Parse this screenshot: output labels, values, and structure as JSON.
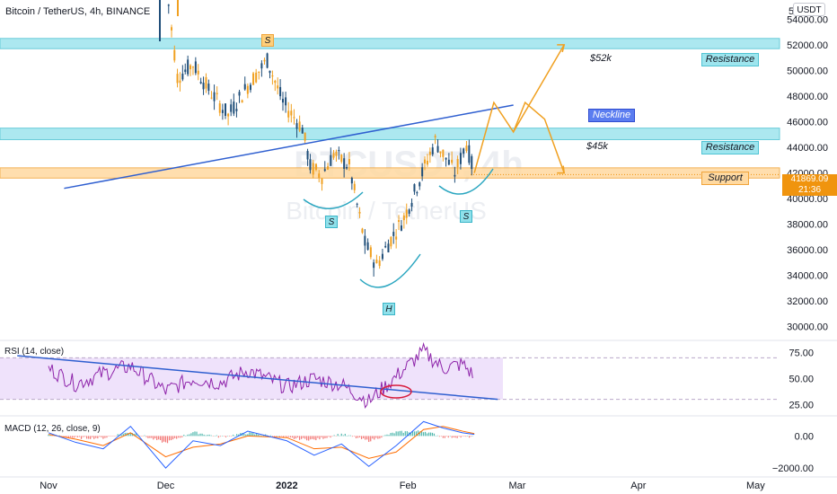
{
  "header": {
    "title": "Bitcoin / TetherUS, 4h, BINANCE",
    "currency_button": "USDT"
  },
  "price_tag": {
    "price": "41869.09",
    "countdown": "21:36"
  },
  "watermark": {
    "symbol": "BTCUSDT, 4h",
    "name": "Bitcoin / TetherUS"
  },
  "zones": {
    "resistance_label": "Resistance",
    "resistance_52k": "$52k",
    "resistance_45k": "$45k",
    "support_label": "Support",
    "neckline_label": "Neckline"
  },
  "pattern_labels": {
    "left_shoulder": "S",
    "head": "H",
    "right_shoulder": "S",
    "top_shoulder": "S"
  },
  "indicators": {
    "rsi_label": "RSI (14, close)",
    "macd_label": "MACD (12, 26, close, 9)"
  },
  "colors": {
    "resistance_zone": "#9ee5ee",
    "support_zone": "#ffd9a0",
    "neckline": "#2f5fd0",
    "projection": "#f0a020",
    "up_candle": "#1f4e79",
    "down_candle": "#f0a020",
    "rsi_line": "#8e24aa",
    "macd_line": "#2962ff",
    "signal_line": "#ff6d00"
  },
  "chart_data": [
    {
      "type": "line",
      "panel": "price",
      "title": "Bitcoin / TetherUS, 4h, BINANCE",
      "x_ticks": [
        "Nov",
        "Dec",
        "2022",
        "Feb",
        "Mar",
        "Apr",
        "May"
      ],
      "y_ticks": [
        "30000.00",
        "32000.00",
        "34000.00",
        "36000.00",
        "38000.00",
        "40000.00",
        "42000.00",
        "44000.00",
        "46000.00",
        "48000.00",
        "50000.00",
        "52000.00",
        "54000.00"
      ],
      "y_top_tick": "5",
      "ylim": [
        29000,
        55500
      ],
      "x": [
        "2021-12-01",
        "2021-12-04",
        "2021-12-08",
        "2021-12-12",
        "2021-12-17",
        "2021-12-22",
        "2021-12-27",
        "2021-12-31",
        "2022-01-05",
        "2022-01-07",
        "2022-01-10",
        "2022-01-13",
        "2022-01-17",
        "2022-01-21",
        "2022-01-24",
        "2022-01-27",
        "2022-01-31",
        "2022-02-04",
        "2022-02-08",
        "2022-02-10",
        "2022-02-13",
        "2022-02-16",
        "2022-02-18"
      ],
      "close": [
        57000,
        49500,
        50500,
        48500,
        46500,
        48800,
        50800,
        47500,
        45500,
        42500,
        41800,
        43500,
        42500,
        36500,
        34800,
        36500,
        38500,
        41500,
        44500,
        43500,
        42000,
        44300,
        41869
      ],
      "zones": [
        {
          "name": "Resistance $52k",
          "from": 51700,
          "to": 52500
        },
        {
          "name": "Resistance $45k",
          "from": 44600,
          "to": 45500
        },
        {
          "name": "Support",
          "from": 41600,
          "to": 42400
        }
      ],
      "neckline": {
        "x": [
          "2021-11-05",
          "2022-02-28"
        ],
        "y": [
          40800,
          47300
        ]
      },
      "projection": {
        "x": [
          "2022-02-18",
          "2022-02-23",
          "2022-02-28",
          "2022-03-03",
          "2022-03-08",
          "2022-03-13"
        ],
        "y": [
          42000,
          47500,
          45200,
          47500,
          46200,
          42000
        ]
      },
      "last_price": 41869.09
    },
    {
      "type": "line",
      "panel": "RSI (14, close)",
      "y_ticks": [
        "25.00",
        "50.00",
        "75.00"
      ],
      "ylim": [
        15,
        85
      ],
      "band": [
        30,
        70
      ],
      "x": [
        "2021-11-01",
        "2021-11-08",
        "2021-11-15",
        "2021-11-22",
        "2021-12-01",
        "2021-12-08",
        "2021-12-15",
        "2021-12-22",
        "2022-01-01",
        "2022-01-08",
        "2022-01-15",
        "2022-01-22",
        "2022-01-29",
        "2022-02-05",
        "2022-02-10",
        "2022-02-15",
        "2022-02-18"
      ],
      "values": [
        60,
        45,
        55,
        62,
        38,
        50,
        46,
        58,
        42,
        50,
        44,
        28,
        52,
        76,
        60,
        64,
        52
      ],
      "trendline": {
        "x": [
          "2021-10-24",
          "2022-02-24"
        ],
        "y": [
          72,
          30
        ]
      }
    },
    {
      "type": "line",
      "panel": "MACD (12, 26, close, 9)",
      "y_ticks": [
        "0.00",
        "−2000.00"
      ],
      "ylim": [
        -2500,
        1200
      ],
      "x": [
        "2021-11-01",
        "2021-11-08",
        "2021-11-15",
        "2021-11-22",
        "2021-12-01",
        "2021-12-08",
        "2021-12-15",
        "2021-12-22",
        "2022-01-01",
        "2022-01-08",
        "2022-01-15",
        "2022-01-22",
        "2022-01-29",
        "2022-02-05",
        "2022-02-10",
        "2022-02-15",
        "2022-02-18"
      ],
      "macd": [
        200,
        -400,
        -800,
        600,
        -2000,
        -300,
        -600,
        300,
        -300,
        -1200,
        -500,
        -1900,
        -600,
        900,
        500,
        200,
        100
      ],
      "signal": [
        100,
        -200,
        -600,
        200,
        -1300,
        -700,
        -500,
        0,
        -100,
        -800,
        -700,
        -1400,
        -1000,
        400,
        600,
        300,
        150
      ]
    }
  ]
}
